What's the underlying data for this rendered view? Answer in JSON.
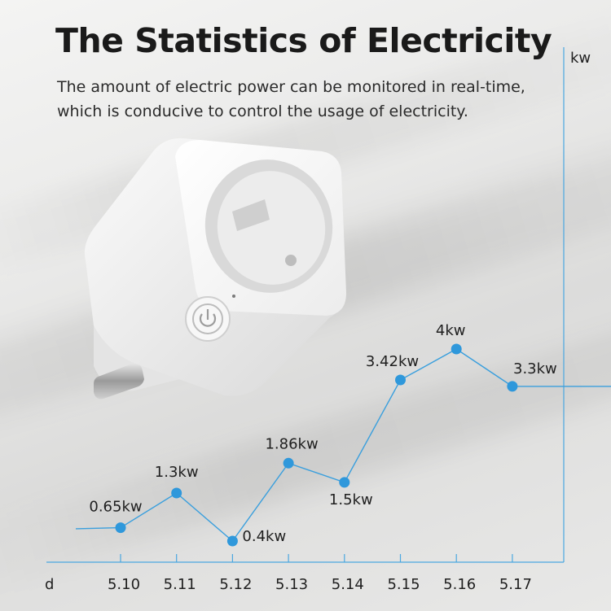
{
  "header": {
    "title": "The Statistics of Electricity",
    "subtitle": "The amount of electric power can be monitored in real-time, which is conducive to control the usage of electricity."
  },
  "colors": {
    "line": "#3a9fdd",
    "point": "#2f98db",
    "axis": "#4aa7e0",
    "text": "#1f1f1f"
  },
  "chart_data": {
    "type": "line",
    "title": "",
    "xlabel": "d",
    "ylabel": "kw",
    "categories": [
      "5.10",
      "5.11",
      "5.12",
      "5.13",
      "5.14",
      "5.15",
      "5.16",
      "5.17"
    ],
    "x": [
      5.1,
      5.11,
      5.12,
      5.13,
      5.14,
      5.15,
      5.16,
      5.17
    ],
    "series": [
      {
        "values": [
          0.65,
          1.3,
          0.4,
          1.86,
          1.5,
          3.42,
          4,
          3.3
        ],
        "data_labels": [
          "0.65kw",
          "1.3kw",
          "0.4kw",
          "1.86kw",
          "1.5kw",
          "3.42kw",
          "4kw",
          "3.3kw"
        ]
      }
    ],
    "ylim": [
      0,
      5
    ],
    "grid": false,
    "legend": "none"
  }
}
